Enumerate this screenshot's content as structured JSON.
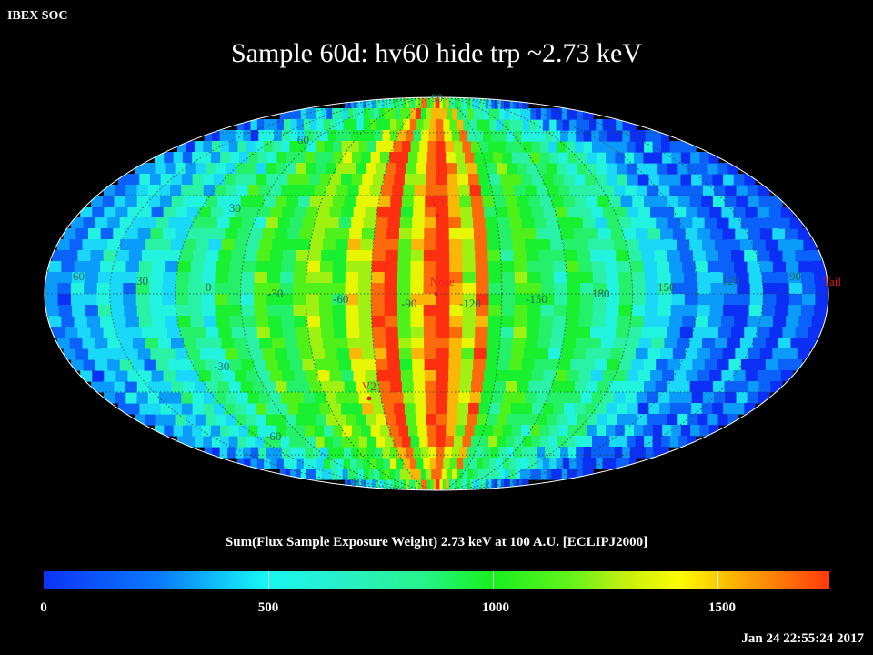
{
  "header": {
    "label": "IBEX SOC"
  },
  "title": "Sample 60d: hv60 hide trp ~2.73 keV",
  "map": {
    "latitude_labels": {
      "lat_60_north": "60",
      "lat_30_north": "30",
      "lat_90_north": "90",
      "lat_30_south": "-30",
      "lat_60_south": "-60",
      "lat_90_south": "-90"
    },
    "longitude_labels": [
      "60",
      "30",
      "0",
      "-30",
      "-60",
      "-90",
      "-120",
      "-150",
      "180",
      "150",
      "120",
      "90"
    ],
    "markers": {
      "nose": "Nose",
      "tail": "Tail",
      "v1": "V1",
      "v2": "V2"
    },
    "marker_color": "#e02020"
  },
  "colorbar": {
    "caption": "Sum(Flux Sample Exposure Weight)  2.73 keV at 100 A.U. [ECLIPJ2000]",
    "ticks": [
      "0",
      "500",
      "1000",
      "1500"
    ],
    "min": 0,
    "max": 1750
  },
  "timestamp": "Jan 24 22:55:24 2017"
}
